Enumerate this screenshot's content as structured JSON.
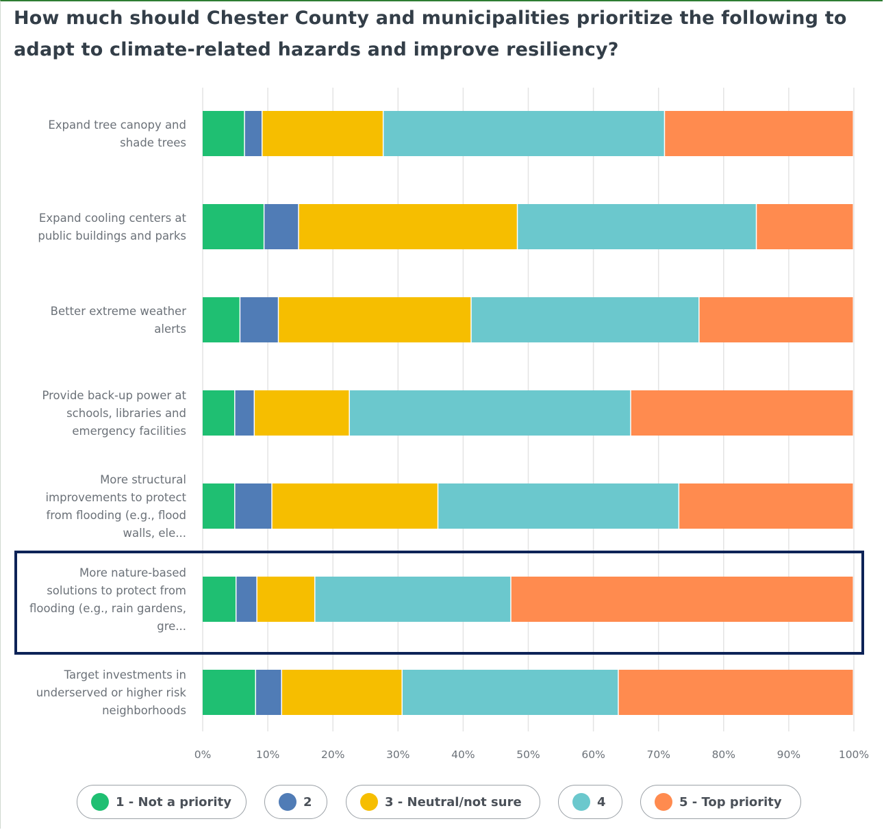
{
  "title": "How much should Chester County and municipalities prioritize the following to adapt to climate-related hazards and improve resiliency?",
  "colors": {
    "1 - Not a priority": "#1fbf72",
    "2": "#507cb6",
    "3 - Neutral/not sure": "#f6be00",
    "4": "#6bc8cd",
    "5 - Top priority": "#ff8b4f",
    "highlight": "#0d2357"
  },
  "legend": [
    {
      "label": "1 - Not a priority",
      "color": "#1fbf72"
    },
    {
      "label": "2",
      "color": "#507cb6"
    },
    {
      "label": "3 - Neutral/not sure",
      "color": "#f6be00"
    },
    {
      "label": "4",
      "color": "#6bc8cd"
    },
    {
      "label": "5 - Top priority",
      "color": "#ff8b4f"
    }
  ],
  "chart_data": {
    "type": "bar",
    "orientation": "horizontal",
    "stacked": true,
    "title": "How much should Chester County and municipalities prioritize the following to adapt to climate-related hazards and improve resiliency?",
    "xlabel": "",
    "ylabel": "",
    "xlim": [
      0,
      100
    ],
    "x_ticks": [
      "0%",
      "10%",
      "20%",
      "30%",
      "40%",
      "50%",
      "60%",
      "70%",
      "80%",
      "90%",
      "100%"
    ],
    "grid": true,
    "legend_position": "bottom",
    "categories": [
      [
        "Expand tree canopy and",
        "shade trees"
      ],
      [
        "Expand cooling centers at",
        "public buildings and parks"
      ],
      [
        "Better extreme weather",
        "alerts"
      ],
      [
        "Provide back-up power at",
        "schools, libraries and",
        "emergency facilities"
      ],
      [
        "More structural",
        "improvements to protect",
        "from flooding (e.g., flood",
        "walls, ele..."
      ],
      [
        "More nature-based",
        "solutions to protect from",
        "flooding (e.g., rain gardens,",
        "gre..."
      ],
      [
        "Target investments in",
        "underserved or higher risk",
        "neighborhoods"
      ]
    ],
    "series": [
      {
        "name": "1 - Not a priority",
        "values": [
          6.5,
          9.5,
          5.8,
          5.0,
          5.0,
          5.2,
          8.2
        ]
      },
      {
        "name": "2",
        "values": [
          2.7,
          5.3,
          5.9,
          3.0,
          5.7,
          3.2,
          4.0
        ]
      },
      {
        "name": "3 - Neutral/not sure",
        "values": [
          18.6,
          33.6,
          29.6,
          14.6,
          25.5,
          8.9,
          18.5
        ]
      },
      {
        "name": "4",
        "values": [
          43.2,
          36.7,
          35.0,
          43.2,
          37.0,
          30.1,
          33.2
        ]
      },
      {
        "name": "5 - Top priority",
        "values": [
          29.0,
          14.9,
          23.7,
          34.2,
          26.8,
          52.6,
          36.1
        ]
      }
    ],
    "highlighted_category_index": 5
  }
}
